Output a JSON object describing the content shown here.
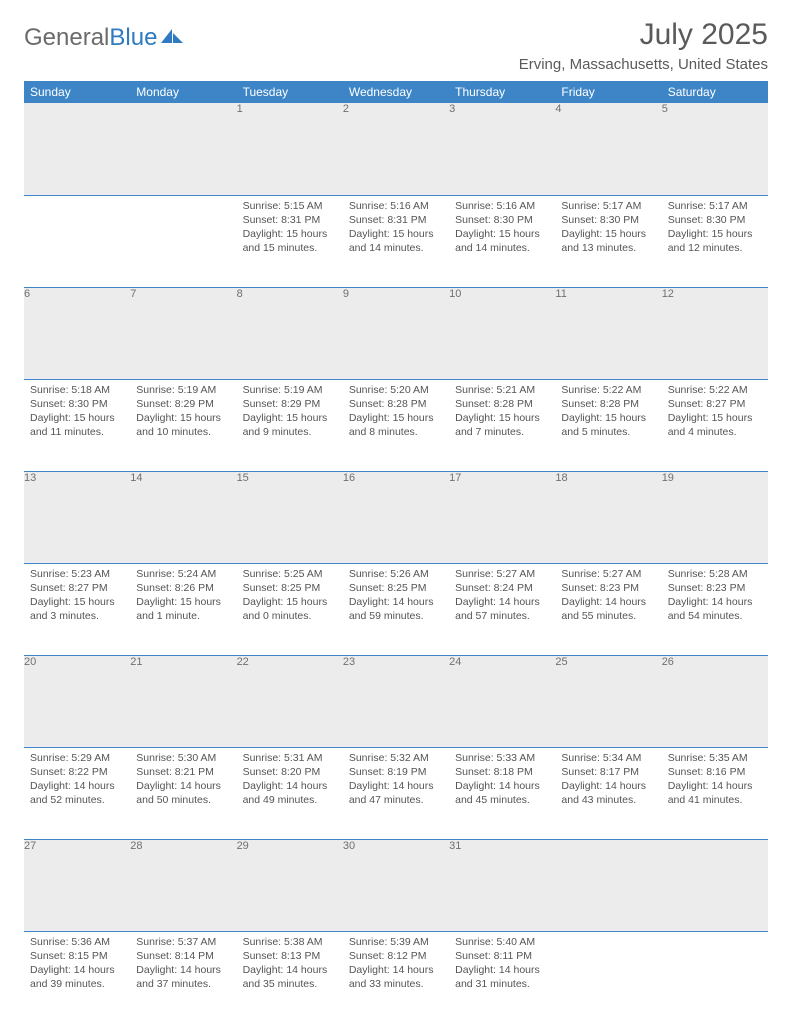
{
  "logo": {
    "part1": "General",
    "part2": "Blue"
  },
  "title": "July 2025",
  "location": "Erving, Massachusetts, United States",
  "colors": {
    "header_bg": "#3d85c6",
    "header_text": "#ffffff",
    "daynum_bg": "#ececec",
    "daynum_text": "#707070",
    "rule": "#3d85c6",
    "body_text": "#555555",
    "logo_gray": "#6b6b6b",
    "logo_blue": "#2f7ac0"
  },
  "day_headers": [
    "Sunday",
    "Monday",
    "Tuesday",
    "Wednesday",
    "Thursday",
    "Friday",
    "Saturday"
  ],
  "weeks": [
    {
      "nums": [
        "",
        "",
        "1",
        "2",
        "3",
        "4",
        "5"
      ],
      "cells": [
        null,
        null,
        {
          "sunrise": "Sunrise: 5:15 AM",
          "sunset": "Sunset: 8:31 PM",
          "day1": "Daylight: 15 hours",
          "day2": "and 15 minutes."
        },
        {
          "sunrise": "Sunrise: 5:16 AM",
          "sunset": "Sunset: 8:31 PM",
          "day1": "Daylight: 15 hours",
          "day2": "and 14 minutes."
        },
        {
          "sunrise": "Sunrise: 5:16 AM",
          "sunset": "Sunset: 8:30 PM",
          "day1": "Daylight: 15 hours",
          "day2": "and 14 minutes."
        },
        {
          "sunrise": "Sunrise: 5:17 AM",
          "sunset": "Sunset: 8:30 PM",
          "day1": "Daylight: 15 hours",
          "day2": "and 13 minutes."
        },
        {
          "sunrise": "Sunrise: 5:17 AM",
          "sunset": "Sunset: 8:30 PM",
          "day1": "Daylight: 15 hours",
          "day2": "and 12 minutes."
        }
      ]
    },
    {
      "nums": [
        "6",
        "7",
        "8",
        "9",
        "10",
        "11",
        "12"
      ],
      "cells": [
        {
          "sunrise": "Sunrise: 5:18 AM",
          "sunset": "Sunset: 8:30 PM",
          "day1": "Daylight: 15 hours",
          "day2": "and 11 minutes."
        },
        {
          "sunrise": "Sunrise: 5:19 AM",
          "sunset": "Sunset: 8:29 PM",
          "day1": "Daylight: 15 hours",
          "day2": "and 10 minutes."
        },
        {
          "sunrise": "Sunrise: 5:19 AM",
          "sunset": "Sunset: 8:29 PM",
          "day1": "Daylight: 15 hours",
          "day2": "and 9 minutes."
        },
        {
          "sunrise": "Sunrise: 5:20 AM",
          "sunset": "Sunset: 8:28 PM",
          "day1": "Daylight: 15 hours",
          "day2": "and 8 minutes."
        },
        {
          "sunrise": "Sunrise: 5:21 AM",
          "sunset": "Sunset: 8:28 PM",
          "day1": "Daylight: 15 hours",
          "day2": "and 7 minutes."
        },
        {
          "sunrise": "Sunrise: 5:22 AM",
          "sunset": "Sunset: 8:28 PM",
          "day1": "Daylight: 15 hours",
          "day2": "and 5 minutes."
        },
        {
          "sunrise": "Sunrise: 5:22 AM",
          "sunset": "Sunset: 8:27 PM",
          "day1": "Daylight: 15 hours",
          "day2": "and 4 minutes."
        }
      ]
    },
    {
      "nums": [
        "13",
        "14",
        "15",
        "16",
        "17",
        "18",
        "19"
      ],
      "cells": [
        {
          "sunrise": "Sunrise: 5:23 AM",
          "sunset": "Sunset: 8:27 PM",
          "day1": "Daylight: 15 hours",
          "day2": "and 3 minutes."
        },
        {
          "sunrise": "Sunrise: 5:24 AM",
          "sunset": "Sunset: 8:26 PM",
          "day1": "Daylight: 15 hours",
          "day2": "and 1 minute."
        },
        {
          "sunrise": "Sunrise: 5:25 AM",
          "sunset": "Sunset: 8:25 PM",
          "day1": "Daylight: 15 hours",
          "day2": "and 0 minutes."
        },
        {
          "sunrise": "Sunrise: 5:26 AM",
          "sunset": "Sunset: 8:25 PM",
          "day1": "Daylight: 14 hours",
          "day2": "and 59 minutes."
        },
        {
          "sunrise": "Sunrise: 5:27 AM",
          "sunset": "Sunset: 8:24 PM",
          "day1": "Daylight: 14 hours",
          "day2": "and 57 minutes."
        },
        {
          "sunrise": "Sunrise: 5:27 AM",
          "sunset": "Sunset: 8:23 PM",
          "day1": "Daylight: 14 hours",
          "day2": "and 55 minutes."
        },
        {
          "sunrise": "Sunrise: 5:28 AM",
          "sunset": "Sunset: 8:23 PM",
          "day1": "Daylight: 14 hours",
          "day2": "and 54 minutes."
        }
      ]
    },
    {
      "nums": [
        "20",
        "21",
        "22",
        "23",
        "24",
        "25",
        "26"
      ],
      "cells": [
        {
          "sunrise": "Sunrise: 5:29 AM",
          "sunset": "Sunset: 8:22 PM",
          "day1": "Daylight: 14 hours",
          "day2": "and 52 minutes."
        },
        {
          "sunrise": "Sunrise: 5:30 AM",
          "sunset": "Sunset: 8:21 PM",
          "day1": "Daylight: 14 hours",
          "day2": "and 50 minutes."
        },
        {
          "sunrise": "Sunrise: 5:31 AM",
          "sunset": "Sunset: 8:20 PM",
          "day1": "Daylight: 14 hours",
          "day2": "and 49 minutes."
        },
        {
          "sunrise": "Sunrise: 5:32 AM",
          "sunset": "Sunset: 8:19 PM",
          "day1": "Daylight: 14 hours",
          "day2": "and 47 minutes."
        },
        {
          "sunrise": "Sunrise: 5:33 AM",
          "sunset": "Sunset: 8:18 PM",
          "day1": "Daylight: 14 hours",
          "day2": "and 45 minutes."
        },
        {
          "sunrise": "Sunrise: 5:34 AM",
          "sunset": "Sunset: 8:17 PM",
          "day1": "Daylight: 14 hours",
          "day2": "and 43 minutes."
        },
        {
          "sunrise": "Sunrise: 5:35 AM",
          "sunset": "Sunset: 8:16 PM",
          "day1": "Daylight: 14 hours",
          "day2": "and 41 minutes."
        }
      ]
    },
    {
      "nums": [
        "27",
        "28",
        "29",
        "30",
        "31",
        "",
        ""
      ],
      "cells": [
        {
          "sunrise": "Sunrise: 5:36 AM",
          "sunset": "Sunset: 8:15 PM",
          "day1": "Daylight: 14 hours",
          "day2": "and 39 minutes."
        },
        {
          "sunrise": "Sunrise: 5:37 AM",
          "sunset": "Sunset: 8:14 PM",
          "day1": "Daylight: 14 hours",
          "day2": "and 37 minutes."
        },
        {
          "sunrise": "Sunrise: 5:38 AM",
          "sunset": "Sunset: 8:13 PM",
          "day1": "Daylight: 14 hours",
          "day2": "and 35 minutes."
        },
        {
          "sunrise": "Sunrise: 5:39 AM",
          "sunset": "Sunset: 8:12 PM",
          "day1": "Daylight: 14 hours",
          "day2": "and 33 minutes."
        },
        {
          "sunrise": "Sunrise: 5:40 AM",
          "sunset": "Sunset: 8:11 PM",
          "day1": "Daylight: 14 hours",
          "day2": "and 31 minutes."
        },
        null,
        null
      ]
    }
  ]
}
